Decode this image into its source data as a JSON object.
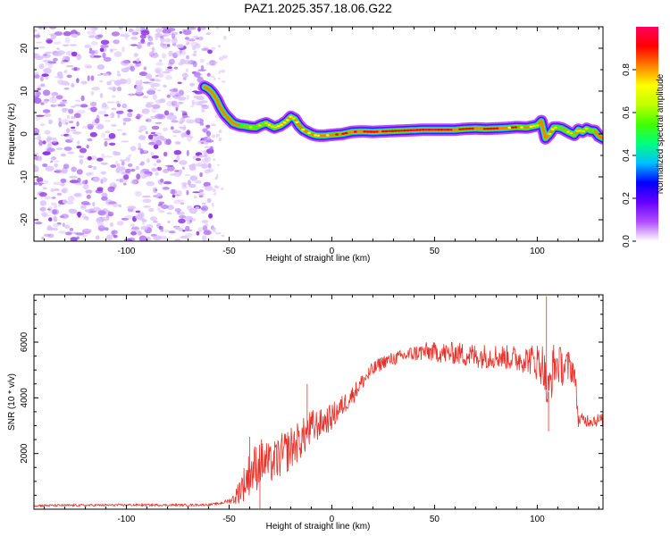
{
  "figure": {
    "title": "PAZ1.2025.357.18.06.G22"
  },
  "chart_data": [
    {
      "name": "spectrogram",
      "type": "heatmap",
      "title": "PAZ1.2025.357.18.06.G22",
      "xlabel": "Height of straight line (km)",
      "ylabel": "Frequency (Hz)",
      "xlim": [
        -145,
        132
      ],
      "ylim": [
        -25,
        25
      ],
      "xticks": [
        -100,
        -50,
        0,
        50,
        100
      ],
      "xtick_labels": [
        "-100",
        "-50",
        "0",
        "50",
        "100"
      ],
      "yticks": [
        -20,
        -10,
        0,
        10,
        20
      ],
      "ytick_labels": [
        "-20",
        "-10",
        "0",
        "10",
        "20"
      ],
      "noise_region_x": [
        -145,
        -58
      ],
      "ridge": {
        "x": [
          -62,
          -60,
          -58,
          -56,
          -54,
          -52,
          -50,
          -48,
          -45,
          -42,
          -40,
          -37,
          -35,
          -32,
          -30,
          -28,
          -25,
          -22,
          -20,
          -18,
          -16,
          -14,
          -12,
          -10,
          -8,
          -6,
          -4,
          -2,
          0,
          5,
          10,
          15,
          20,
          25,
          30,
          35,
          40,
          45,
          50,
          55,
          60,
          65,
          70,
          75,
          80,
          85,
          90,
          95,
          100,
          102,
          104,
          106,
          108,
          110,
          112,
          115,
          118,
          120,
          122,
          124,
          126,
          128,
          130,
          132
        ],
        "y": [
          11,
          10.5,
          9.5,
          8,
          6,
          4.5,
          3.5,
          2.5,
          2,
          1.8,
          1.6,
          1.5,
          2,
          2.5,
          2,
          1.5,
          2,
          3,
          4,
          3.5,
          2,
          1,
          0.5,
          0,
          -0.3,
          -0.4,
          -0.4,
          -0.3,
          -0.2,
          0,
          0.5,
          0.6,
          0.5,
          0.6,
          0.7,
          0.8,
          0.9,
          1,
          1,
          1,
          1,
          1.2,
          1.3,
          1.2,
          1.3,
          1.4,
          1.6,
          1.5,
          2,
          3,
          -1,
          0,
          1.5,
          1.5,
          1.3,
          0.5,
          -0.2,
          1,
          0.5,
          1.2,
          0.8,
          0.7,
          -0.5,
          -1
        ],
        "amplitude": [
          0.3,
          0.35,
          0.35,
          0.4,
          0.4,
          0.4,
          0.45,
          0.5,
          0.55,
          0.55,
          0.6,
          0.6,
          0.6,
          0.65,
          0.65,
          0.7,
          0.7,
          0.7,
          0.72,
          0.72,
          0.72,
          0.75,
          0.75,
          0.75,
          0.78,
          0.78,
          0.8,
          0.8,
          0.82,
          0.82,
          0.85,
          0.85,
          0.88,
          0.9,
          0.92,
          0.93,
          0.95,
          0.95,
          0.95,
          0.92,
          0.9,
          0.9,
          0.88,
          0.88,
          0.85,
          0.85,
          0.82,
          0.8,
          0.6,
          0.5,
          0.45,
          0.6,
          0.65,
          0.65,
          0.6,
          0.6,
          0.6,
          0.65,
          0.6,
          0.6,
          0.55,
          0.55,
          0.5,
          0.45
        ]
      },
      "colorbar": {
        "label": "Normalized spectral amplitude",
        "range": [
          0,
          1
        ],
        "ticks": [
          0.0,
          0.2,
          0.4,
          0.6,
          0.8
        ],
        "tick_labels": [
          "0.0",
          "0.2",
          "0.4",
          "0.6",
          "0.8"
        ],
        "colors": [
          "#ffffff",
          "#b04dff",
          "#6600ff",
          "#0000ff",
          "#00c0ff",
          "#00ff80",
          "#40ff00",
          "#c0ff00",
          "#ffff00",
          "#ff8000",
          "#ff0000",
          "#ff0060"
        ]
      }
    },
    {
      "name": "snr",
      "type": "line",
      "xlabel": "Height of straight line (km)",
      "ylabel": "SNR (10 * v/v)",
      "xlim": [
        -145,
        132
      ],
      "ylim": [
        0,
        7700
      ],
      "xticks": [
        -100,
        -50,
        0,
        50,
        100
      ],
      "xtick_labels": [
        "-100",
        "-50",
        "0",
        "50",
        "100"
      ],
      "yticks": [
        2000,
        4000,
        6000
      ],
      "ytick_labels": [
        "2000",
        "4000",
        "6000"
      ],
      "color": "#e8312a",
      "envelope": {
        "x": [
          -145,
          -100,
          -70,
          -60,
          -55,
          -50,
          -47,
          -45,
          -42,
          -40,
          -37,
          -35,
          -32,
          -30,
          -25,
          -20,
          -15,
          -10,
          -5,
          0,
          5,
          10,
          15,
          20,
          25,
          30,
          35,
          40,
          45,
          50,
          55,
          60,
          65,
          70,
          75,
          80,
          85,
          90,
          95,
          100,
          103,
          105,
          108,
          110,
          113,
          116,
          118,
          120,
          125,
          132
        ],
        "y": [
          130,
          150,
          150,
          160,
          200,
          300,
          400,
          700,
          1000,
          1300,
          1500,
          1700,
          1700,
          1600,
          1900,
          2200,
          2500,
          2900,
          3100,
          3300,
          3700,
          4100,
          4600,
          5000,
          5300,
          5400,
          5500,
          5600,
          5650,
          5650,
          5600,
          5600,
          5550,
          5500,
          5500,
          5500,
          5450,
          5400,
          5400,
          5300,
          5200,
          4000,
          5200,
          5200,
          5100,
          5100,
          5000,
          3200,
          3200,
          3200
        ],
        "noise": [
          40,
          40,
          40,
          40,
          40,
          80,
          250,
          500,
          700,
          800,
          900,
          900,
          800,
          700,
          800,
          800,
          700,
          700,
          500,
          500,
          400,
          350,
          300,
          300,
          250,
          250,
          250,
          300,
          350,
          350,
          400,
          400,
          450,
          450,
          450,
          450,
          450,
          500,
          500,
          700,
          800,
          900,
          800,
          700,
          700,
          600,
          500,
          250,
          250,
          250
        ],
        "spikes": [
          {
            "x": 104.5,
            "y": 7650
          },
          {
            "x": 105.5,
            "y": 2800
          },
          {
            "x": -35,
            "y": 30
          },
          {
            "x": -40,
            "y": 2600
          },
          {
            "x": -12,
            "y": 4500
          }
        ]
      }
    }
  ]
}
